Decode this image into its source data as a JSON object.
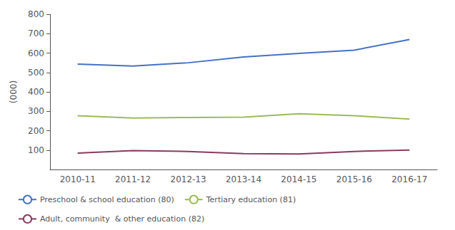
{
  "chart_data": {
    "type": "line",
    "categories": [
      "2010-11",
      "2011-12",
      "2012-13",
      "2013-14",
      "2014-15",
      "2015-16",
      "2016-17"
    ],
    "series": [
      {
        "name": "Preschool & school education (80)",
        "color": "#4472C4",
        "values": [
          543,
          533,
          550,
          580,
          598,
          615,
          670
        ]
      },
      {
        "name": "Tertiary education (81)",
        "color": "#9BBB59",
        "values": [
          277,
          265,
          268,
          270,
          287,
          277,
          260
        ]
      },
      {
        "name": "Adult, community  & other education (82)",
        "color": "#8B3A62",
        "values": [
          84,
          97,
          93,
          82,
          80,
          93,
          100
        ]
      }
    ],
    "ylabel": "(000)",
    "ylim": [
      0,
      800
    ],
    "yticks": [
      100,
      200,
      300,
      400,
      500,
      600,
      700,
      800
    ],
    "grid": false,
    "legend": "lower left"
  }
}
